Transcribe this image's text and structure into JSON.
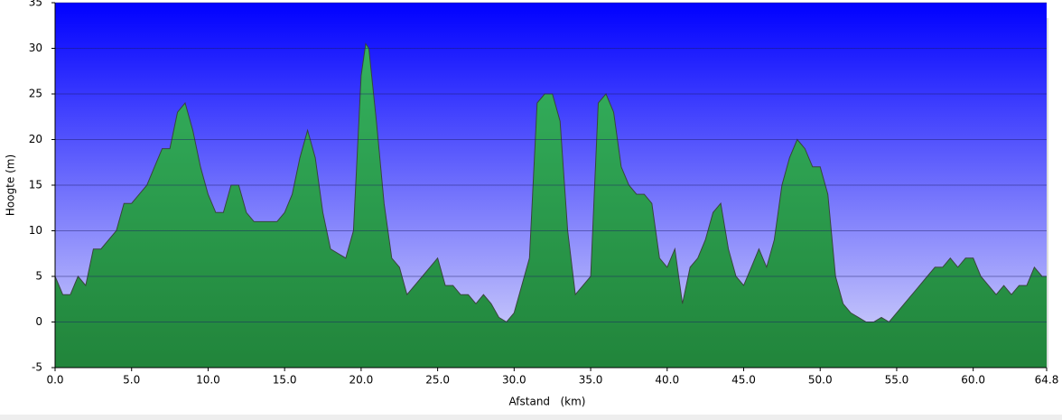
{
  "chart_data": {
    "type": "area",
    "x_label": "Afstand   (km)",
    "y_label": "Hoogte (m)",
    "x": [
      0,
      0.5,
      1,
      1.5,
      2,
      2.5,
      3,
      3.5,
      4,
      4.5,
      5,
      5.5,
      6,
      6.5,
      7,
      7.5,
      8,
      8.5,
      9,
      9.5,
      10,
      10.5,
      11,
      11.5,
      12,
      12.5,
      13,
      13.5,
      14,
      14.5,
      15,
      15.5,
      16,
      16.5,
      17,
      17.5,
      18,
      18.5,
      19,
      19.5,
      20,
      20.3,
      20.5,
      21,
      21.5,
      22,
      22.5,
      23,
      23.5,
      24,
      24.5,
      25,
      25.5,
      26,
      26.5,
      27,
      27.5,
      28,
      28.5,
      29,
      29.5,
      30,
      30.5,
      31,
      31.5,
      32,
      32.5,
      33,
      33.5,
      34,
      34.5,
      35,
      35.5,
      36,
      36.5,
      37,
      37.5,
      38,
      38.5,
      39,
      39.5,
      40,
      40.5,
      41,
      41.5,
      42,
      42.5,
      43,
      43.5,
      44,
      44.5,
      45,
      45.5,
      46,
      46.5,
      47,
      47.5,
      48,
      48.5,
      49,
      49.5,
      50,
      50.5,
      51,
      51.5,
      52,
      52.5,
      53,
      53.5,
      54,
      54.5,
      55,
      55.5,
      56,
      56.5,
      57,
      57.5,
      58,
      58.5,
      59,
      59.5,
      60,
      60.5,
      61,
      61.5,
      62,
      62.5,
      63,
      63.5,
      64,
      64.5,
      64.8
    ],
    "series": [
      {
        "color": "#22a045",
        "values": [
          5,
          3,
          3,
          5,
          4,
          8,
          8,
          9,
          10,
          13,
          13,
          14,
          15,
          17,
          19,
          19,
          23,
          24,
          21,
          17,
          14,
          12,
          12,
          15,
          15,
          12,
          11,
          11,
          11,
          11,
          12,
          14,
          18,
          21,
          18,
          12,
          8,
          7.5,
          7,
          10,
          27,
          30.5,
          30,
          22,
          13,
          7,
          6,
          3,
          4,
          5,
          6,
          7,
          4,
          4,
          3,
          3,
          2,
          3,
          2,
          0.5,
          0,
          1,
          4,
          7,
          24,
          25,
          25,
          22,
          10,
          3,
          4,
          5,
          24,
          25,
          23,
          17,
          15,
          14,
          14,
          13,
          7,
          6,
          8,
          2,
          6,
          7,
          9,
          12,
          13,
          8,
          5,
          4,
          6,
          8,
          6,
          9,
          15,
          18,
          20,
          19,
          17,
          17,
          14,
          5,
          2,
          1,
          0.5,
          0,
          0,
          0.5,
          0,
          1,
          2,
          3,
          4,
          5,
          6,
          6,
          7,
          6,
          7,
          7,
          5,
          4,
          3,
          4,
          3,
          4,
          4,
          6,
          5,
          5
        ]
      }
    ],
    "xlim": [
      0,
      64.8
    ],
    "xticks": [
      {
        "value": 0,
        "label": "0.0"
      },
      {
        "value": 5,
        "label": "5.0"
      },
      {
        "value": 10,
        "label": "10.0"
      },
      {
        "value": 15,
        "label": "15.0"
      },
      {
        "value": 20,
        "label": "20.0"
      },
      {
        "value": 25,
        "label": "25.0"
      },
      {
        "value": 30,
        "label": "30.0"
      },
      {
        "value": 35,
        "label": "35.0"
      },
      {
        "value": 40,
        "label": "40.0"
      },
      {
        "value": 45,
        "label": "45.0"
      },
      {
        "value": 50,
        "label": "50.0"
      },
      {
        "value": 55,
        "label": "55.0"
      },
      {
        "value": 60,
        "label": "60.0"
      },
      64.8
    ],
    "ylim": [
      -5,
      35
    ],
    "yticks": [
      -5,
      0,
      5,
      10,
      15,
      20,
      25,
      30,
      35
    ],
    "grid": true
  }
}
